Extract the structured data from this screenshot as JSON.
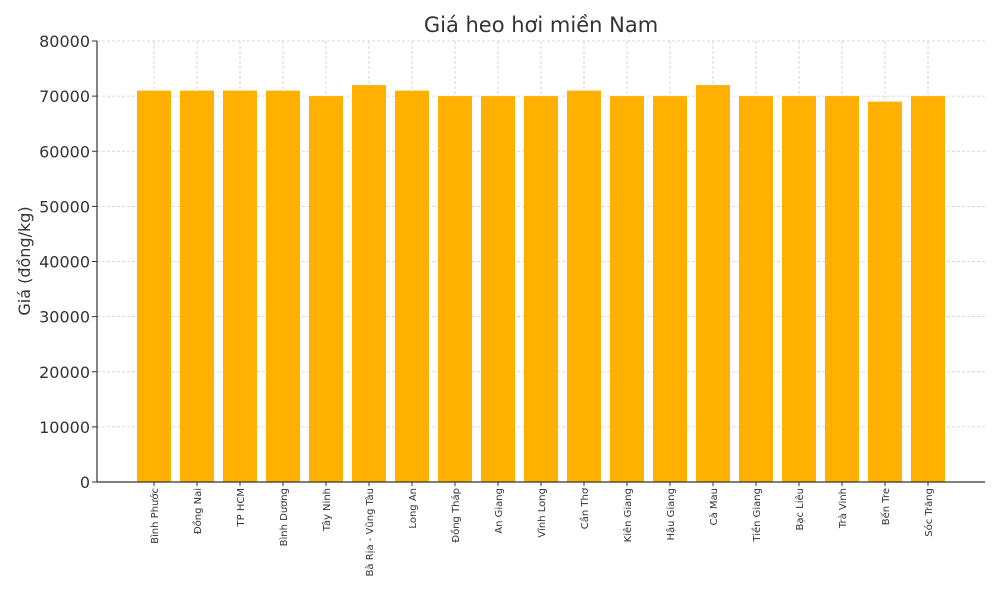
{
  "chart_data": {
    "type": "bar",
    "title": "Giá heo hơi miền Nam",
    "xlabel": "",
    "ylabel": "Giá (đồng/kg)",
    "ylim": [
      0,
      80000
    ],
    "yticks": [
      0,
      10000,
      20000,
      30000,
      40000,
      50000,
      60000,
      70000,
      80000
    ],
    "grid": true,
    "bar_color": "#FFB000",
    "categories": [
      "Bình Phước",
      "Đồng Nai",
      "TP HCM",
      "Bình Dương",
      "Tây Ninh",
      "Bà Rịa - Vũng Tàu",
      "Long An",
      "Đồng Tháp",
      "An Giang",
      "Vĩnh Long",
      "Cần Thơ",
      "Kiên Giang",
      "Hậu Giang",
      "Cà Mau",
      "Tiền Giang",
      "Bạc Liêu",
      "Trà Vinh",
      "Bến Tre",
      "Sóc Trăng"
    ],
    "values": [
      71000,
      71000,
      71000,
      71000,
      70000,
      72000,
      71000,
      70000,
      70000,
      70000,
      71000,
      70000,
      70000,
      72000,
      70000,
      70000,
      70000,
      69000,
      70000
    ]
  }
}
